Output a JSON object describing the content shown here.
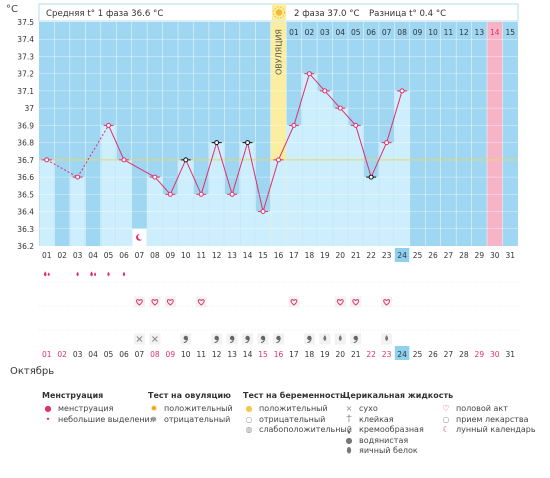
{
  "chart_data": {
    "type": "line",
    "y_unit": "°C",
    "ylim": [
      36.2,
      37.5
    ],
    "y_ticks": [
      "37.5",
      "37.4",
      "37.3",
      "37.2",
      "37.1",
      "37",
      "36.9",
      "36.8",
      "36.7",
      "36.6",
      "36.5",
      "36.4",
      "36.3",
      "36.2"
    ],
    "cycle_days": [
      "01",
      "02",
      "03",
      "04",
      "05",
      "06",
      "07",
      "08",
      "09",
      "10",
      "11",
      "12",
      "13",
      "14",
      "15",
      "16",
      "17",
      "18",
      "19",
      "20",
      "21",
      "22",
      "23",
      "24",
      "25",
      "26",
      "27",
      "28",
      "29",
      "30",
      "31"
    ],
    "header": {
      "phase1": "Средняя t° 1 фаза 36.6 °C",
      "phase2": "2 фаза 37.0 °C",
      "diff": "Разница t° 0.4 °C",
      "ovulation": "ОВУЛЯЦИЯ",
      "phase2_days": [
        "01",
        "02",
        "03",
        "04",
        "05",
        "06",
        "07",
        "08",
        "09",
        "10",
        "11",
        "12",
        "13",
        "14",
        "15"
      ]
    },
    "temperatures": [
      36.7,
      null,
      36.6,
      null,
      36.9,
      36.7,
      null,
      36.6,
      36.5,
      36.7,
      36.5,
      36.8,
      36.5,
      36.8,
      36.4,
      36.7,
      36.9,
      37.2,
      37.1,
      37.0,
      36.9,
      36.6,
      36.8,
      37.1,
      null,
      null,
      null,
      null,
      null,
      null,
      null
    ],
    "marker_styles": [
      "pink",
      "",
      "pink",
      "",
      "pink",
      "pink",
      "",
      "pink",
      "pink",
      "black",
      "pink",
      "black",
      "pink",
      "black",
      "pink",
      "pink",
      "pink",
      "pink",
      "pink",
      "pink",
      "pink",
      "black",
      "pink",
      "pink",
      "",
      "",
      "",
      "",
      "",
      "",
      ""
    ],
    "dashed_segments": [
      [
        1,
        3
      ],
      [
        3,
        5
      ]
    ],
    "coverline": 36.7,
    "today_day": 24,
    "ovulation_day": 16,
    "pink_column_day": 30,
    "menstruation_days": [
      1,
      3,
      4,
      5,
      6
    ],
    "menstruation_levels": [
      "heavy",
      "light",
      "heavy",
      "light",
      "light"
    ],
    "sex_days": [
      7,
      8,
      9,
      11,
      17,
      20,
      21,
      23
    ],
    "lunar_day": 7,
    "fluid_marks": [
      {
        "day": 7,
        "kind": "dry"
      },
      {
        "day": 8,
        "kind": "dry"
      },
      {
        "day": 10,
        "kind": "creamy"
      },
      {
        "day": 12,
        "kind": "creamy"
      },
      {
        "day": 13,
        "kind": "creamy"
      },
      {
        "day": 14,
        "kind": "creamy"
      },
      {
        "day": 15,
        "kind": "creamy"
      },
      {
        "day": 16,
        "kind": "creamy"
      },
      {
        "day": 18,
        "kind": "creamy"
      },
      {
        "day": 19,
        "kind": "watery"
      },
      {
        "day": 20,
        "kind": "watery"
      },
      {
        "day": 21,
        "kind": "creamy"
      },
      {
        "day": 23,
        "kind": "watery"
      }
    ],
    "date_labels": [
      "01",
      "02",
      "03",
      "04",
      "05",
      "06",
      "07",
      "08",
      "09",
      "10",
      "11",
      "12",
      "13",
      "14",
      "15",
      "16",
      "17",
      "18",
      "19",
      "20",
      "21",
      "22",
      "23",
      "24",
      "25",
      "26",
      "27",
      "28",
      "29",
      "30",
      "31"
    ],
    "date_red_days": [
      1,
      2,
      8,
      9,
      15,
      16,
      22,
      23,
      29,
      30
    ],
    "month": "Октябрь",
    "colors": {
      "plot_bg": "#9fd6f1",
      "bar": "#cdeefd",
      "line": "#e0306a",
      "ovulation": "#fbeea0",
      "pink_col": "#f7b4c6",
      "today": "#8fd0ee",
      "coverline": "#e8d76a"
    }
  },
  "legend": [
    {
      "title": "Менструация",
      "items": [
        {
          "icon": "drops-icon",
          "label": "менструация"
        },
        {
          "icon": "drop-icon",
          "label": "небольшие выделения"
        }
      ]
    },
    {
      "title": "Тест на овуляцию",
      "items": [
        {
          "icon": "sun-icon",
          "label": "положительный"
        },
        {
          "icon": "sun-grey-icon",
          "label": "отрицательный"
        }
      ]
    },
    {
      "title": "Тест на беременность",
      "items": [
        {
          "icon": "circle-yellow-icon",
          "label": "положительный"
        },
        {
          "icon": "circle-empty-icon",
          "label": "отрицательный"
        },
        {
          "icon": "circle-grey-icon",
          "label": "слабоположительный"
        }
      ]
    },
    {
      "title": "Церикальная жидкость",
      "items": [
        {
          "icon": "cross-icon",
          "label": "сухо"
        },
        {
          "icon": "sticky-icon",
          "label": "клейкая"
        },
        {
          "icon": "comma-icon",
          "label": "кремообразная"
        },
        {
          "icon": "drop-grey-icon",
          "label": "водянистая"
        },
        {
          "icon": "egg-icon",
          "label": "яичный белок"
        }
      ]
    },
    {
      "title": "",
      "items": [
        {
          "icon": "heart-icon",
          "label": "половой акт"
        },
        {
          "icon": "pill-icon",
          "label": "прием лекарства"
        },
        {
          "icon": "moon-icon",
          "label": "лунный календарь"
        }
      ]
    }
  ]
}
